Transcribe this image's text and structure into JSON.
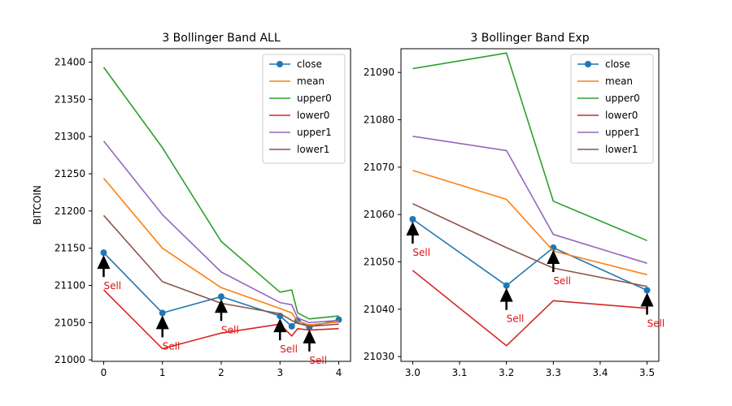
{
  "chart_data": [
    {
      "type": "line",
      "title": "3 Bollinger Band ALL",
      "xlabel": "",
      "ylabel": "BITCOIN",
      "xlim": [
        -0.2,
        4.2
      ],
      "ylim": [
        20998,
        21418
      ],
      "xticks": [
        "0",
        "1",
        "2",
        "3",
        "4"
      ],
      "yticks": [
        "21000",
        "21050",
        "21100",
        "21150",
        "21200",
        "21250",
        "21300",
        "21350",
        "21400"
      ],
      "x": [
        0,
        1,
        2,
        3,
        3.2,
        3.3,
        3.5,
        4
      ],
      "series": [
        {
          "name": "close",
          "color": "#1f77b4",
          "markers": true,
          "values": [
            21144,
            21063,
            21085,
            21059,
            21045,
            21053,
            21044,
            21054
          ]
        },
        {
          "name": "mean",
          "color": "#ff7f0e",
          "markers": false,
          "values": [
            21244,
            21150,
            21097,
            21069,
            21063,
            21052,
            21047,
            21051
          ]
        },
        {
          "name": "upper0",
          "color": "#2ca02c",
          "markers": false,
          "values": [
            21393,
            21285,
            21159,
            21091,
            21094,
            21063,
            21055,
            21059
          ]
        },
        {
          "name": "lower0",
          "color": "#d62728",
          "markers": false,
          "values": [
            21094,
            21015,
            21036,
            21048,
            21032,
            21042,
            21040,
            21042
          ]
        },
        {
          "name": "upper1",
          "color": "#9467bd",
          "markers": false,
          "values": [
            21294,
            21195,
            21118,
            21077,
            21074,
            21056,
            21050,
            21053
          ]
        },
        {
          "name": "lower1",
          "color": "#8c564b",
          "markers": false,
          "values": [
            21194,
            21105,
            21076,
            21062,
            21053,
            21049,
            21045,
            21048
          ]
        }
      ],
      "annotations": [
        {
          "text": "Sell",
          "x": 0,
          "y": 21144
        },
        {
          "text": "Sell",
          "x": 1,
          "y": 21063
        },
        {
          "text": "Sell",
          "x": 2,
          "y": 21085
        },
        {
          "text": "Sell",
          "x": 3,
          "y": 21059
        },
        {
          "text": "Sell",
          "x": 3.5,
          "y": 21044
        }
      ],
      "legend": "top-right",
      "grid": false
    },
    {
      "type": "line",
      "title": "3 Bollinger Band Exp",
      "xlabel": "",
      "ylabel": "",
      "xlim": [
        2.975,
        3.525
      ],
      "ylim": [
        21029,
        21095
      ],
      "xticks": [
        "3.0",
        "3.1",
        "3.2",
        "3.3",
        "3.4",
        "3.5"
      ],
      "yticks": [
        "21030",
        "21040",
        "21050",
        "21060",
        "21070",
        "21080",
        "21090"
      ],
      "x": [
        3.0,
        3.2,
        3.3,
        3.5
      ],
      "series": [
        {
          "name": "close",
          "color": "#1f77b4",
          "markers": true,
          "values": [
            21059,
            21045,
            21053,
            21044
          ]
        },
        {
          "name": "mean",
          "color": "#ff7f0e",
          "markers": false,
          "values": [
            21069.3,
            21063.2,
            21052.3,
            21047.3
          ]
        },
        {
          "name": "upper0",
          "color": "#2ca02c",
          "markers": false,
          "values": [
            21090.8,
            21094.1,
            21062.8,
            21054.5
          ]
        },
        {
          "name": "lower0",
          "color": "#d62728",
          "markers": false,
          "values": [
            21048.2,
            21032.3,
            21041.8,
            21040.2
          ]
        },
        {
          "name": "upper1",
          "color": "#9467bd",
          "markers": false,
          "values": [
            21076.5,
            21073.5,
            21055.8,
            21049.7
          ]
        },
        {
          "name": "lower1",
          "color": "#8c564b",
          "markers": false,
          "values": [
            21062.3,
            21053.0,
            21048.7,
            21044.8
          ]
        }
      ],
      "annotations": [
        {
          "text": "Sell",
          "x": 3.0,
          "y": 21059
        },
        {
          "text": "Sell",
          "x": 3.2,
          "y": 21045
        },
        {
          "text": "Sell",
          "x": 3.3,
          "y": 21053
        },
        {
          "text": "Sell",
          "x": 3.5,
          "y": 21044
        }
      ],
      "legend": "top-right",
      "grid": false
    }
  ]
}
